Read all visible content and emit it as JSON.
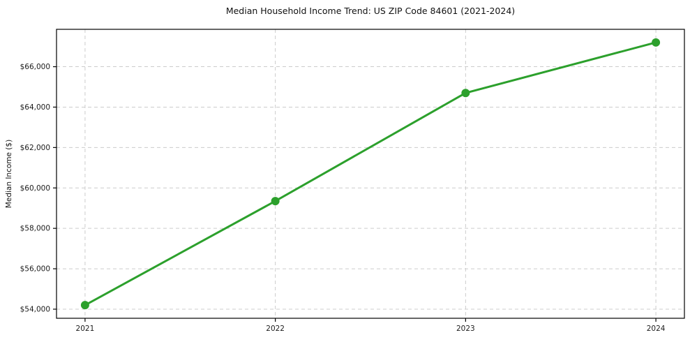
{
  "chart_data": {
    "type": "line",
    "title": "Median Household Income Trend: US ZIP Code 84601 (2021-2024)",
    "xlabel": "",
    "ylabel": "Median Income ($)",
    "x": [
      2021,
      2022,
      2023,
      2024
    ],
    "series": [
      {
        "name": "Median Household Income",
        "values": [
          54200,
          59350,
          64700,
          67200
        ]
      }
    ],
    "xticks": {
      "values": [
        2021,
        2022,
        2023,
        2024
      ],
      "labels": [
        "2021",
        "2022",
        "2023",
        "2024"
      ]
    },
    "yticks": {
      "values": [
        54000,
        56000,
        58000,
        60000,
        62000,
        64000,
        66000
      ],
      "labels": [
        "$54,000",
        "$56,000",
        "$58,000",
        "$60,000",
        "$62,000",
        "$64,000",
        "$66,000"
      ]
    },
    "xlim": [
      2020.85,
      2024.15
    ],
    "ylim": [
      53550,
      67850
    ],
    "grid": true,
    "grid_style": "dashed",
    "legend_position": "none",
    "line_color": "#2ca02c",
    "marker": "circle",
    "grid_color": "#cccccc",
    "spine_color": "#000000",
    "background_color": "#ffffff"
  }
}
